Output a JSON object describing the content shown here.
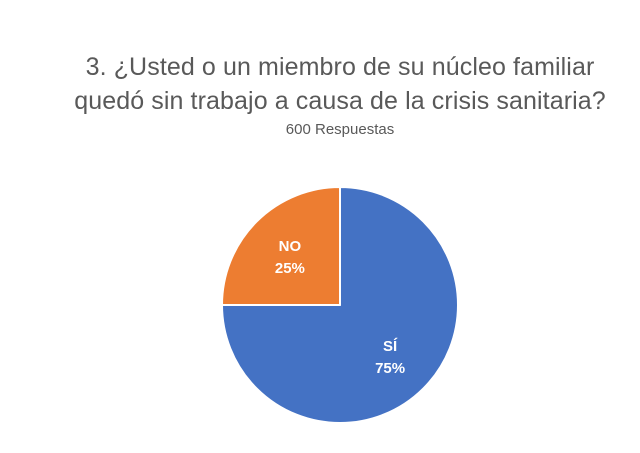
{
  "chart_data": {
    "type": "pie",
    "title_lines": [
      "3. ¿Usted o un miembro de su núcleo familiar",
      "quedó sin trabajo a causa de la crisis sanitaria?"
    ],
    "subtitle": "600 Respuestas",
    "slices": [
      {
        "label": "SÍ",
        "value": 75,
        "value_label": "75%",
        "color": "#4472C4"
      },
      {
        "label": "NO",
        "value": 25,
        "value_label": "25%",
        "color": "#ED7D31"
      }
    ],
    "start": "top, clockwise",
    "legend": "none"
  }
}
